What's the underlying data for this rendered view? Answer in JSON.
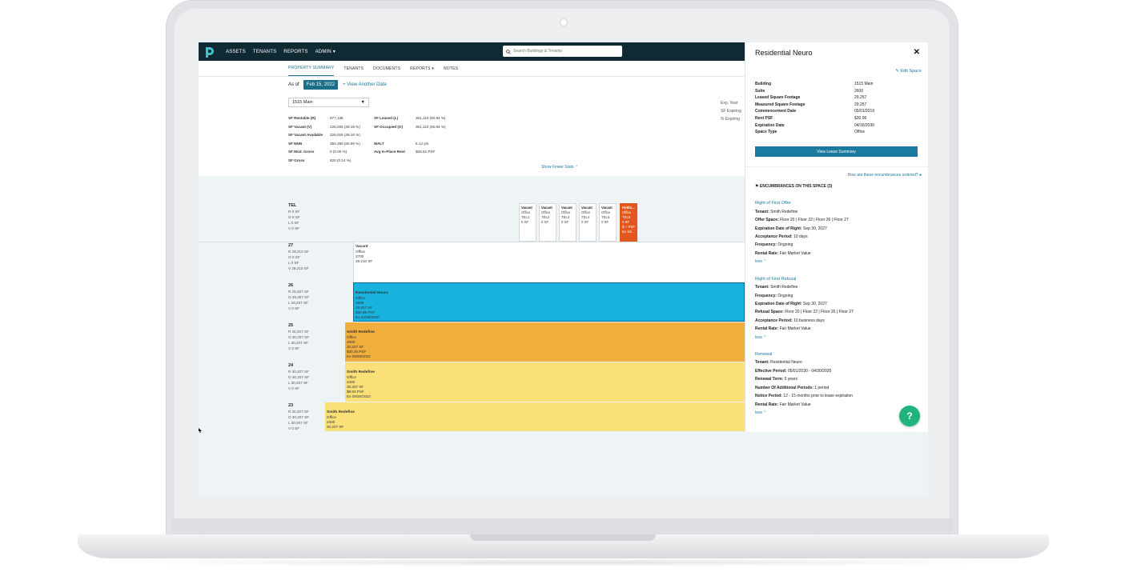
{
  "nav": {
    "items": [
      "ASSETS",
      "TENANTS",
      "REPORTS",
      "ADMIN"
    ],
    "search_placeholder": "Search Buildings & Tenants"
  },
  "tabs": [
    "PROPERTY SUMMARY",
    "TENANTS",
    "DOCUMENTS",
    "REPORTS",
    "NOTES"
  ],
  "asof": {
    "label": "As of",
    "date": "Feb 15, 2022",
    "link": "+ View Another Date"
  },
  "summary": {
    "building": "1515 Main",
    "left_stats": [
      {
        "k": "SF Rentable (R)",
        "v": "577,136"
      },
      {
        "k": "SF Vacant (V)",
        "v": "226,026 (39.16 %)"
      },
      {
        "k": "SF Vacant Available",
        "v": "226,026 (39.16 %)"
      },
      {
        "k": "SF NNN",
        "v": "350,290 (60.69 %)"
      },
      {
        "k": "SF Mod. Gross",
        "v": "0 (0.00 %)"
      },
      {
        "k": "SF Gross",
        "v": "820 (0.14 %)"
      }
    ],
    "mid_stats": [
      {
        "k": "SF Leased (L)",
        "v": "351,110 (60.84 %)"
      },
      {
        "k": "SF Occupied (O)",
        "v": "351,110 (60.84 %)"
      },
      {
        "k": "WALT",
        "v": "6.14 yrs"
      },
      {
        "k": "Avg In-Place Rent",
        "v": "$25.51 PSF"
      }
    ],
    "right_stats": [
      "Exp. Year",
      "SF Expiring",
      "% Expiring"
    ],
    "show_fewer": "Show Fewer Stats"
  },
  "plan": {
    "tel": {
      "name": "TEL",
      "rolv": [
        "R  0 SF",
        "O  0 SF",
        "L  0 SF",
        "V  0 SF"
      ],
      "cards": [
        {
          "t": "Vacant",
          "l1": "Office",
          "l2": "TEL1",
          "l3": "0 SF"
        },
        {
          "t": "Vacant",
          "l1": "Office",
          "l2": "TEL2",
          "l3": "0 SF"
        },
        {
          "t": "Vacant",
          "l1": "Office",
          "l2": "TEL3",
          "l3": "0 SF"
        },
        {
          "t": "Vacant",
          "l1": "Office",
          "l2": "TEL4",
          "l3": "0 SF"
        },
        {
          "t": "Vacant",
          "l1": "Office",
          "l2": "TEL5",
          "l3": "0 SF"
        },
        {
          "t": "Hotlin...",
          "l1": "Office",
          "l2": "TEL6",
          "l3": "0 SF",
          "l4": "$ -- PSF",
          "l5": "Ex 10/..."
        }
      ]
    },
    "floors": [
      {
        "n": "27",
        "r": "R  29,210 SF",
        "o": "O  0 SF",
        "l": "L  0 SF",
        "v": "V  29,210 SF",
        "tenant": "Vacant",
        "type": "Office",
        "suite": "2700",
        "sf": "29,210 SF",
        "psf": "",
        "ex": ""
      },
      {
        "n": "26",
        "r": "R  29,257 SF",
        "o": "O  29,257 SF",
        "l": "L  29,257 SF",
        "v": "V  0 SF",
        "tenant": "Residential Neuro",
        "type": "Office",
        "suite": "2600",
        "sf": "29,257 SF",
        "psf": "$30.96 PSF",
        "ex": "Ex 04/30/2030"
      },
      {
        "n": "25",
        "r": "R  30,207 SF",
        "o": "O  30,207 SF",
        "l": "L  30,207 SF",
        "v": "V  0 SF",
        "tenant": "Smith Redefine",
        "type": "Office",
        "suite": "2500",
        "sf": "30,207 SF",
        "psf": "$30.30 PSF",
        "ex": "Ex 09/30/2022"
      },
      {
        "n": "24",
        "r": "R  30,207 SF",
        "o": "O  30,207 SF",
        "l": "L  30,207 SF",
        "v": "V  0 SF",
        "tenant": "Smith Redefine",
        "type": "Office",
        "suite": "2400",
        "sf": "30,207 SF",
        "psf": "$9.83 PSF",
        "ex": "Ex 09/30/2023"
      },
      {
        "n": "23",
        "r": "R  30,207 SF",
        "o": "O  30,207 SF",
        "l": "L  30,207 SF",
        "v": "V  0 SF",
        "tenant": "Smith Redefine",
        "type": "Office",
        "suite": "2300",
        "sf": "30,207 SF",
        "psf": "",
        "ex": ""
      }
    ]
  },
  "panel": {
    "title": "Residential Neuro",
    "edit": "Edit Space",
    "fields": [
      {
        "k": "Building",
        "v": "1515 Main"
      },
      {
        "k": "Suite",
        "v": "2600"
      },
      {
        "k": "Leased Square Footage",
        "v": "29,257"
      },
      {
        "k": "Measured Square Footage",
        "v": "29,257"
      },
      {
        "k": "Commencement Date",
        "v": "05/01/2019"
      },
      {
        "k": "Rent PSF",
        "v": "$30.96"
      },
      {
        "k": "Expiration Date",
        "v": "04/30/2030"
      },
      {
        "k": "Space Type",
        "v": "Office"
      }
    ],
    "view_button": "View Lease Summary",
    "how": "How are these encumbrances ordered?",
    "enc_head": "ENCUMBRANCES ON THIS SPACE (3)",
    "encumbrances": [
      {
        "title": "Right of First Offer",
        "lines": [
          [
            "Tenant:",
            " Smith Redefine"
          ],
          [
            "Offer Space:",
            " Floor 20 | Floor 22 | Floor 26 | Floor 27"
          ],
          [
            "Expiration Date of Right:",
            " Sep 30, 2027"
          ],
          [
            "Acceptance Period:",
            " 10 days"
          ],
          [
            "Frequency:",
            " Ongoing"
          ],
          [
            "Rental Rate:",
            " Fair Market Value"
          ]
        ]
      },
      {
        "title": "Right of First Refusal",
        "lines": [
          [
            "Tenant:",
            " Smith Redefine"
          ],
          [
            "Frequency:",
            " Ongoing"
          ],
          [
            "Expiration Date of Right:",
            " Sep 30, 2027"
          ],
          [
            "Refusal Space:",
            " Floor 20 | Floor 22 | Floor 26 | Floor 27"
          ],
          [
            "Acceptance Period:",
            " 10 business days"
          ],
          [
            "Rental Rate:",
            " Fair Market Value"
          ]
        ]
      },
      {
        "title": "Renewal",
        "lines": [
          [
            "Tenant:",
            " Residential Neuro"
          ],
          [
            "Effective Period:",
            " 05/01/2030 - 04/30/2035"
          ],
          [
            "Renewal Term:",
            " 5 years"
          ],
          [
            "Number Of Additional Periods:",
            " 1 period"
          ],
          [
            "Notice Period:",
            " 12 - 15 months prior to lease expiration"
          ],
          [
            "Rental Rate:",
            " Fair Market Value"
          ]
        ]
      }
    ],
    "less": "less"
  },
  "help": "?",
  "colors": {
    "nav": "#0f2a33",
    "accent": "#1a6e87",
    "vacant": "#ffffff",
    "neuro": "#1ab3e0",
    "smith_dark": "#f0ae3c",
    "smith_light": "#fbe07a",
    "hotline": "#e2571e",
    "help": "#22b37a"
  }
}
